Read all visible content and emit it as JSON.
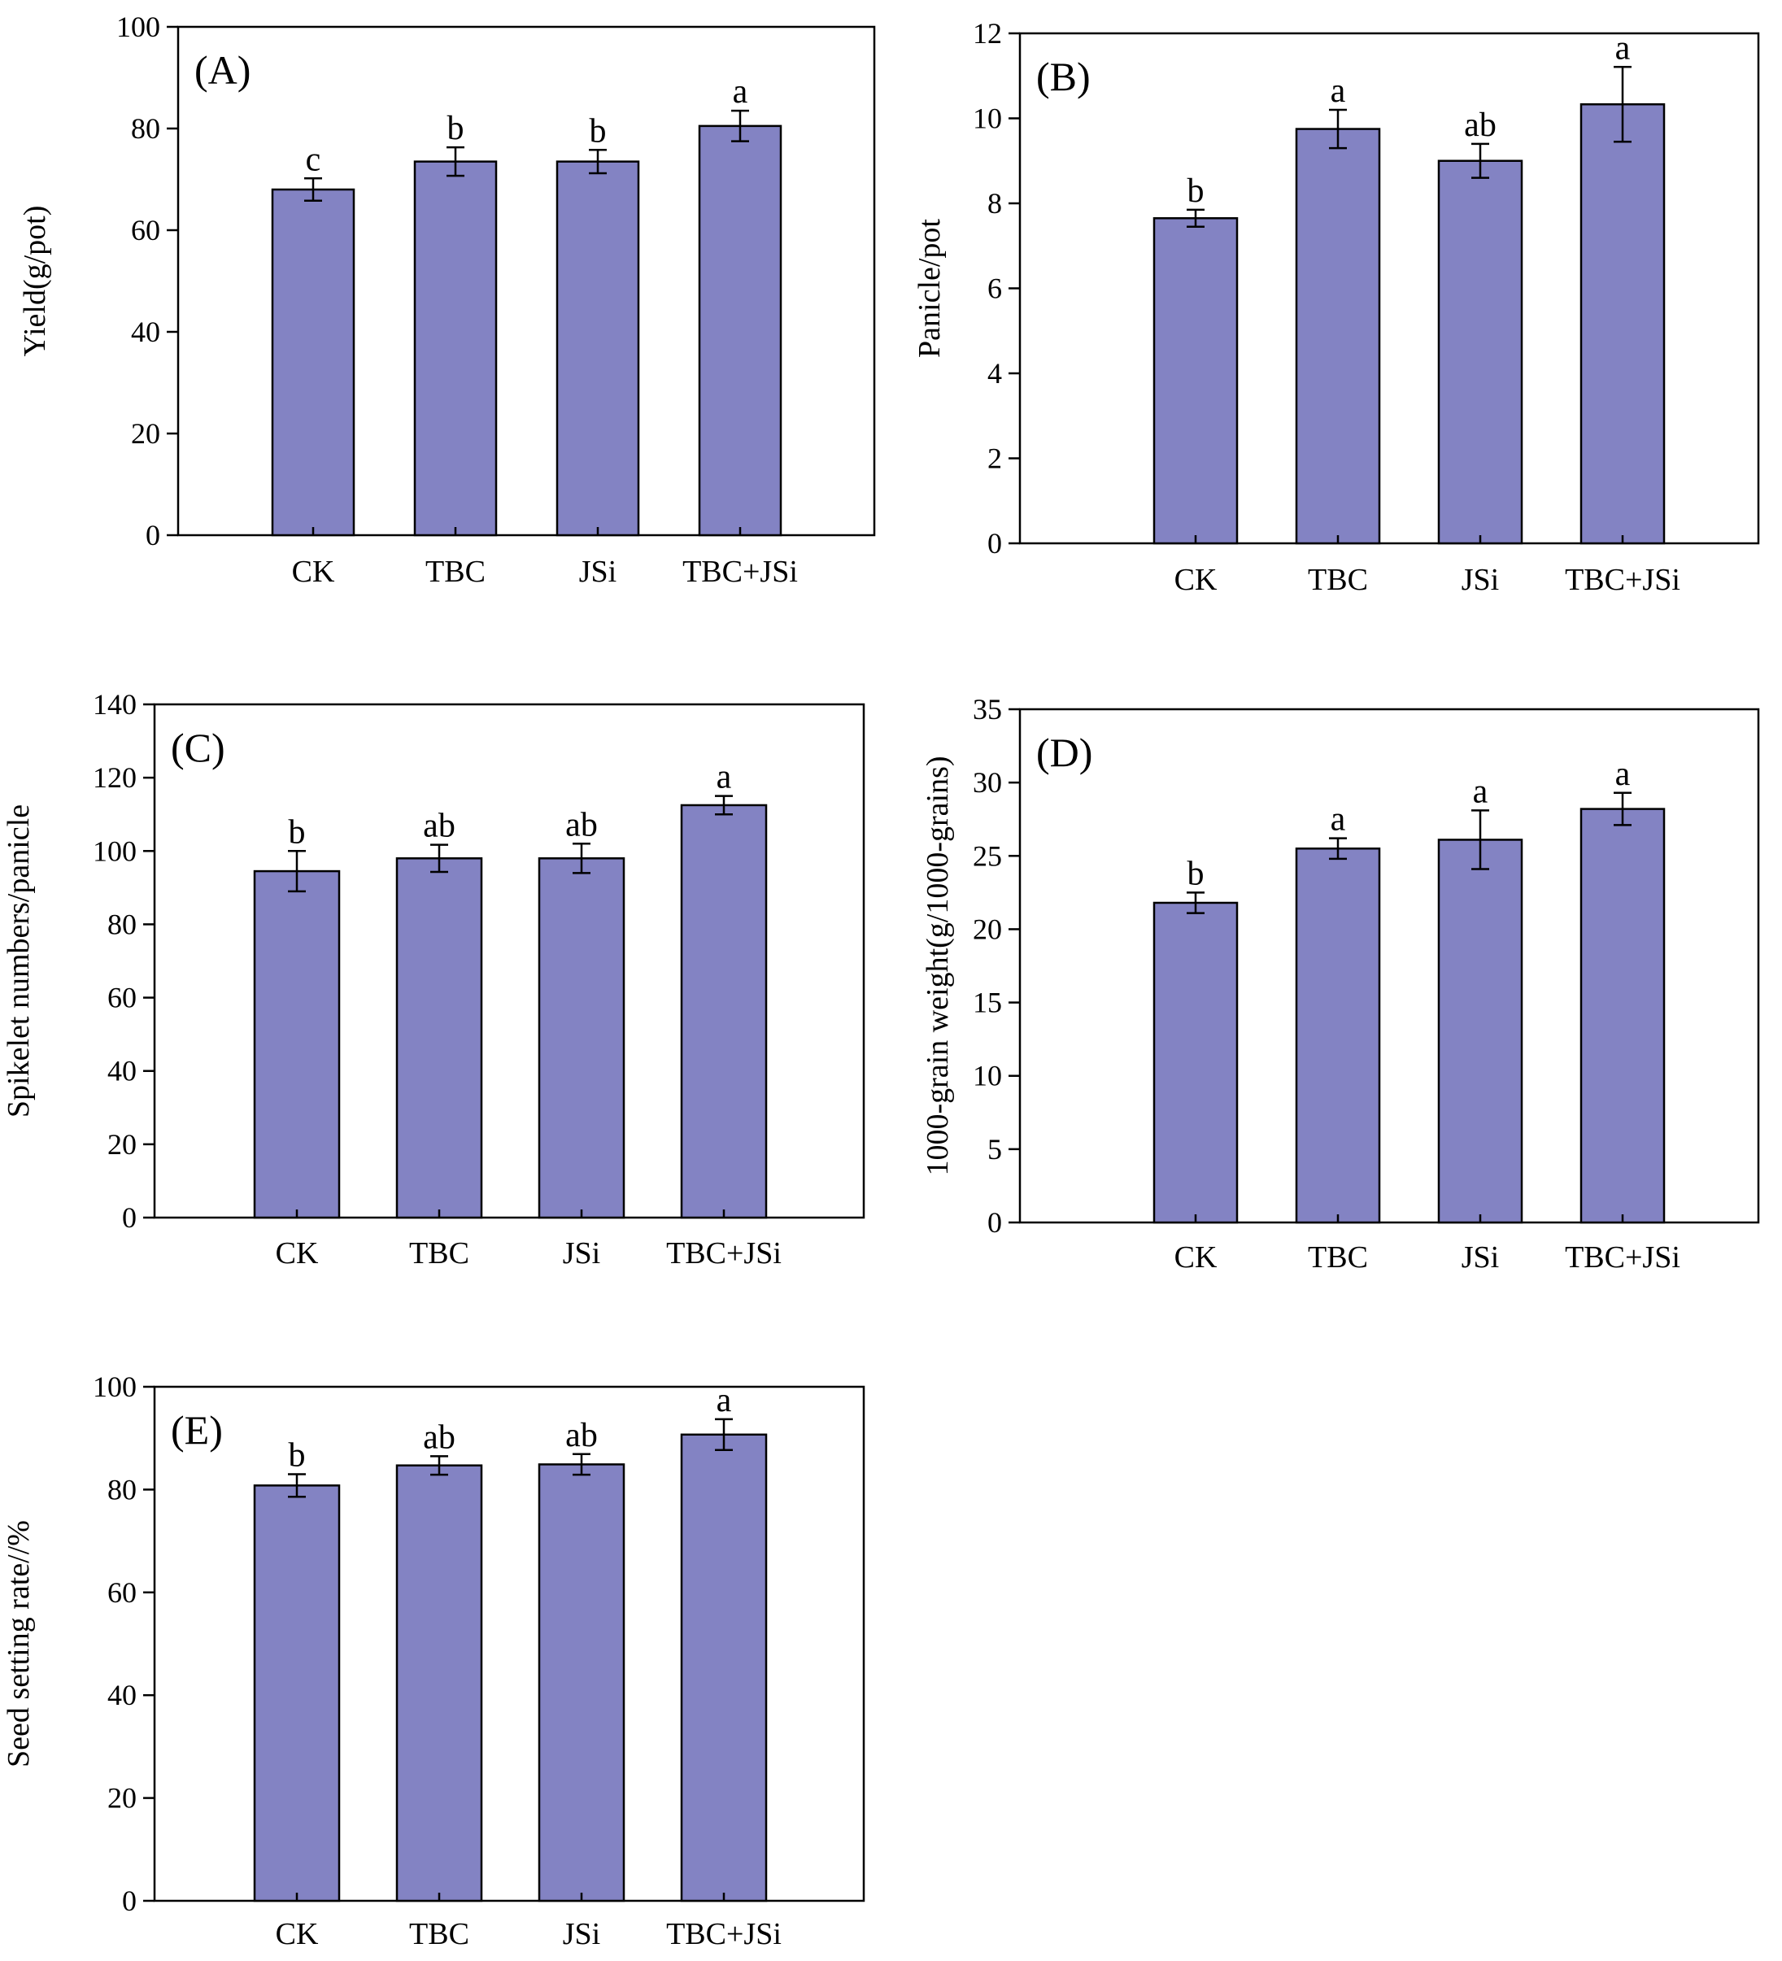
{
  "figure": {
    "bar_color": "#8383c3",
    "frame_color": "#000000"
  },
  "chart_data": [
    {
      "panel": "A",
      "type": "bar",
      "title": "(A)",
      "xlabel": "",
      "ylabel": "Yield(g/pot)",
      "categories": [
        "CK",
        "TBC",
        "JSi",
        "TBC+JSi"
      ],
      "values": [
        68,
        73.5,
        73.5,
        80.5
      ],
      "errors": [
        2.2,
        2.8,
        2.3,
        3.0
      ],
      "significance": [
        "c",
        "b",
        "b",
        "a"
      ],
      "ylim": [
        0,
        100
      ],
      "yticks": [
        "0",
        "20",
        "40",
        "60",
        "80",
        "100"
      ]
    },
    {
      "panel": "B",
      "type": "bar",
      "title": "(B)",
      "xlabel": "",
      "ylabel": "Panicle/pot",
      "categories": [
        "CK",
        "TBC",
        "JSi",
        "TBC+JSi"
      ],
      "values": [
        7.65,
        9.75,
        9.0,
        10.33
      ],
      "errors": [
        0.2,
        0.45,
        0.4,
        0.88
      ],
      "significance": [
        "b",
        "a",
        "ab",
        "a"
      ],
      "ylim": [
        0,
        12
      ],
      "yticks": [
        "0",
        "2",
        "4",
        "6",
        "8",
        "10",
        "12"
      ]
    },
    {
      "panel": "C",
      "type": "bar",
      "title": "(C)",
      "xlabel": "",
      "ylabel": "Spikelet numbers/panicle",
      "categories": [
        "CK",
        "TBC",
        "JSi",
        "TBC+JSi"
      ],
      "values": [
        94.5,
        98,
        98,
        112.5
      ],
      "errors": [
        5.5,
        3.7,
        4.0,
        2.5
      ],
      "significance": [
        "b",
        "ab",
        "ab",
        "a"
      ],
      "ylim": [
        0,
        140
      ],
      "yticks": [
        "0",
        "20",
        "40",
        "60",
        "80",
        "100",
        "120",
        "140"
      ]
    },
    {
      "panel": "D",
      "type": "bar",
      "title": "(D)",
      "xlabel": "",
      "ylabel": "1000-grain weight(g/1000-grains)",
      "categories": [
        "CK",
        "TBC",
        "JSi",
        "TBC+JSi"
      ],
      "values": [
        21.8,
        25.5,
        26.1,
        28.2
      ],
      "errors": [
        0.7,
        0.7,
        2.0,
        1.1
      ],
      "significance": [
        "b",
        "a",
        "a",
        "a"
      ],
      "ylim": [
        0,
        35
      ],
      "yticks": [
        "0",
        "5",
        "10",
        "15",
        "20",
        "25",
        "30",
        "35"
      ]
    },
    {
      "panel": "E",
      "type": "bar",
      "title": "(E)",
      "xlabel": "",
      "ylabel": "Seed setting rate//%",
      "categories": [
        "CK",
        "TBC",
        "JSi",
        "TBC+JSi"
      ],
      "values": [
        80.8,
        84.7,
        84.9,
        90.7
      ],
      "errors": [
        2.2,
        1.8,
        2.0,
        3.0
      ],
      "significance": [
        "b",
        "ab",
        "ab",
        "a"
      ],
      "ylim": [
        0,
        100
      ],
      "yticks": [
        "0",
        "20",
        "40",
        "60",
        "80",
        "100"
      ]
    }
  ]
}
